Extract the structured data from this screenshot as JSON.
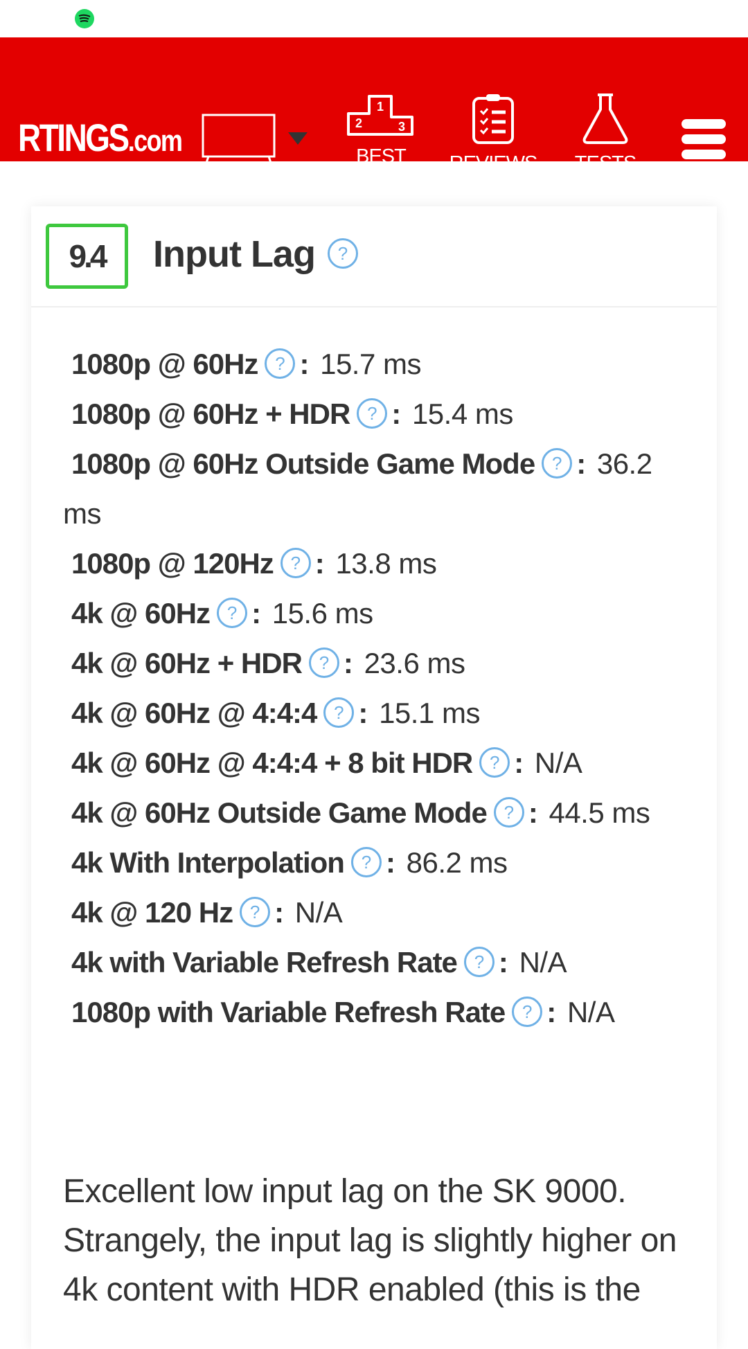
{
  "header": {
    "logo": "RTINGS",
    "logo_suffix": ".com",
    "category_icon": "tv-icon",
    "nav": [
      {
        "label": "BEST",
        "icon": "podium-icon"
      },
      {
        "label": "REVIEWS",
        "icon": "clipboard-icon"
      },
      {
        "label": "TESTS",
        "icon": "flask-icon"
      }
    ],
    "menu_icon": "hamburger-icon",
    "brand_color": "#e30000"
  },
  "section": {
    "score": "9.4",
    "score_color": "#3ec83e",
    "title": "Input Lag",
    "help_glyph": "?",
    "rows": [
      {
        "label": "1080p @ 60Hz",
        "value": "15.7 ms"
      },
      {
        "label": "1080p @ 60Hz + HDR",
        "value": "15.4 ms"
      },
      {
        "label": "1080p @ 60Hz Outside Game Mode",
        "value": "36.2 ms"
      },
      {
        "label": "1080p @ 120Hz",
        "value": "13.8 ms"
      },
      {
        "label": "4k @ 60Hz",
        "value": "15.6 ms"
      },
      {
        "label": "4k @ 60Hz + HDR",
        "value": "23.6 ms"
      },
      {
        "label": "4k @ 60Hz @ 4:4:4",
        "value": "15.1 ms"
      },
      {
        "label": "4k @ 60Hz @ 4:4:4 + 8 bit HDR",
        "value": "N/A"
      },
      {
        "label": "4k @ 60Hz Outside Game Mode",
        "value": "44.5 ms"
      },
      {
        "label": "4k With Interpolation",
        "value": "86.2 ms"
      },
      {
        "label": "4k @ 120 Hz",
        "value": "N/A"
      },
      {
        "label": "4k with Variable Refresh Rate",
        "value": "N/A"
      },
      {
        "label": "1080p with Variable Refresh Rate",
        "value": "N/A"
      }
    ],
    "description": "Excellent low input lag on the SK 9000. Strangely, the input lag is slightly higher on 4k content with HDR enabled (this is the"
  }
}
